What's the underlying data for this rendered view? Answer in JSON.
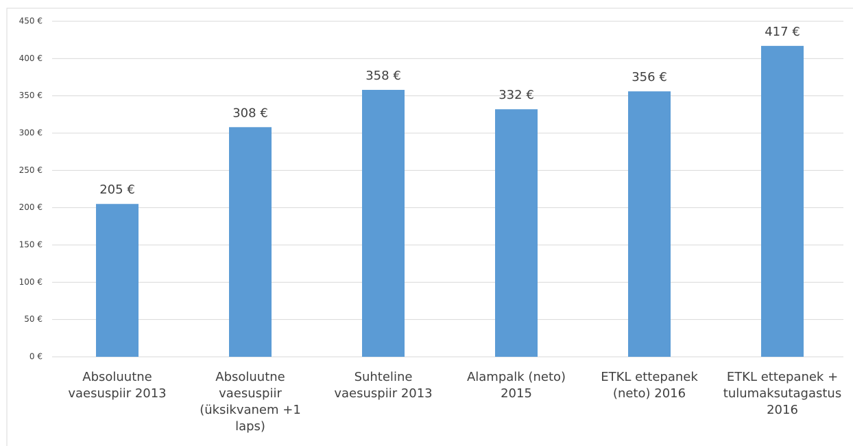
{
  "chart_data": {
    "type": "bar",
    "categories": [
      "Absoluutne vaesuspiir 2013",
      "Absoluutne vaesuspiir (üksikvanem +1 laps)",
      "Suhteline vaesuspiir 2013",
      "Alampalk (neto) 2015",
      "ETKL ettepanek (neto) 2016",
      "ETKL ettepanek + tulumaksutagastus 2016"
    ],
    "values": [
      205,
      308,
      358,
      332,
      356,
      417
    ],
    "value_labels": [
      "205 €",
      "308 €",
      "358 €",
      "332 €",
      "356 €",
      "417 €"
    ],
    "color": "#5b9bd5",
    "ylim": [
      0,
      450
    ],
    "yticks": [
      {
        "value": 0,
        "label": "0 €"
      },
      {
        "value": 50,
        "label": "50 €"
      },
      {
        "value": 100,
        "label": "100 €"
      },
      {
        "value": 150,
        "label": "150 €"
      },
      {
        "value": 200,
        "label": "200 €"
      },
      {
        "value": 250,
        "label": "250 €"
      },
      {
        "value": 300,
        "label": "300 €"
      },
      {
        "value": 350,
        "label": "350 €"
      },
      {
        "value": 400,
        "label": "400 €"
      },
      {
        "value": 450,
        "label": "450 €"
      }
    ],
    "grid": true
  }
}
